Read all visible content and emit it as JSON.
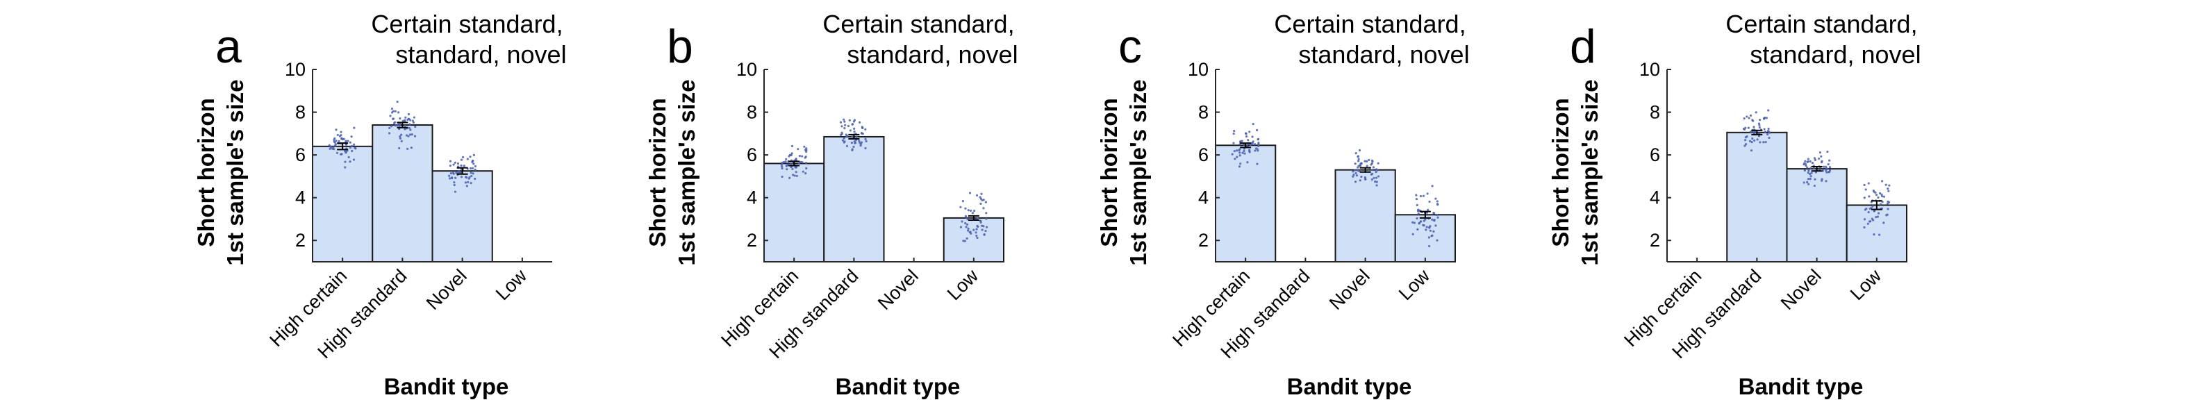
{
  "chart_data": [
    {
      "type": "bar",
      "panel_letter": "a",
      "title_lines": [
        "Certain standard,",
        "standard, novel"
      ],
      "ylabel_lines": [
        "Short horizon",
        "1st sample's size"
      ],
      "xlabel": "Bandit type",
      "categories": [
        "High certain",
        "High standard",
        "Novel",
        "Low"
      ],
      "values": [
        6.4,
        7.4,
        5.25,
        null
      ],
      "errors": [
        0.15,
        0.12,
        0.15,
        null
      ],
      "ylim": [
        1,
        10
      ],
      "yticks": [
        "2",
        "4",
        "6",
        "8",
        "10"
      ],
      "bar_color": "#cfe0f7",
      "point_color": "#4a5fb0"
    },
    {
      "type": "bar",
      "panel_letter": "b",
      "title_lines": [
        "Certain standard,",
        "standard, novel"
      ],
      "ylabel_lines": [
        "Short horizon",
        "1st sample's size"
      ],
      "xlabel": "Bandit type",
      "categories": [
        "High certain",
        "High standard",
        "Novel",
        "Low"
      ],
      "values": [
        5.6,
        6.85,
        null,
        3.05
      ],
      "errors": [
        0.1,
        0.1,
        null,
        0.1
      ],
      "ylim": [
        1,
        10
      ],
      "yticks": [
        "2",
        "4",
        "6",
        "8",
        "10"
      ],
      "bar_color": "#cfe0f7",
      "point_color": "#4a5fb0"
    },
    {
      "type": "bar",
      "panel_letter": "c",
      "title_lines": [
        "Certain standard,",
        "standard, novel"
      ],
      "ylabel_lines": [
        "Short horizon",
        "1st sample's size"
      ],
      "xlabel": "Bandit type",
      "categories": [
        "High certain",
        "High standard",
        "Novel",
        "Low"
      ],
      "values": [
        6.45,
        null,
        5.3,
        3.2
      ],
      "errors": [
        0.1,
        null,
        0.1,
        0.15
      ],
      "ylim": [
        1,
        10
      ],
      "yticks": [
        "2",
        "4",
        "6",
        "8",
        "10"
      ],
      "bar_color": "#cfe0f7",
      "point_color": "#4a5fb0"
    },
    {
      "type": "bar",
      "panel_letter": "d",
      "title_lines": [
        "Certain standard,",
        "standard, novel"
      ],
      "ylabel_lines": [
        "Short horizon",
        "1st sample's size"
      ],
      "xlabel": "Bandit type",
      "categories": [
        "High certain",
        "High standard",
        "Novel",
        "Low"
      ],
      "values": [
        null,
        7.05,
        5.35,
        3.65
      ],
      "errors": [
        null,
        0.1,
        0.1,
        0.2
      ],
      "ylim": [
        1,
        10
      ],
      "yticks": [
        "2",
        "4",
        "6",
        "8",
        "10"
      ],
      "bar_color": "#cfe0f7",
      "point_color": "#4a5fb0"
    }
  ]
}
